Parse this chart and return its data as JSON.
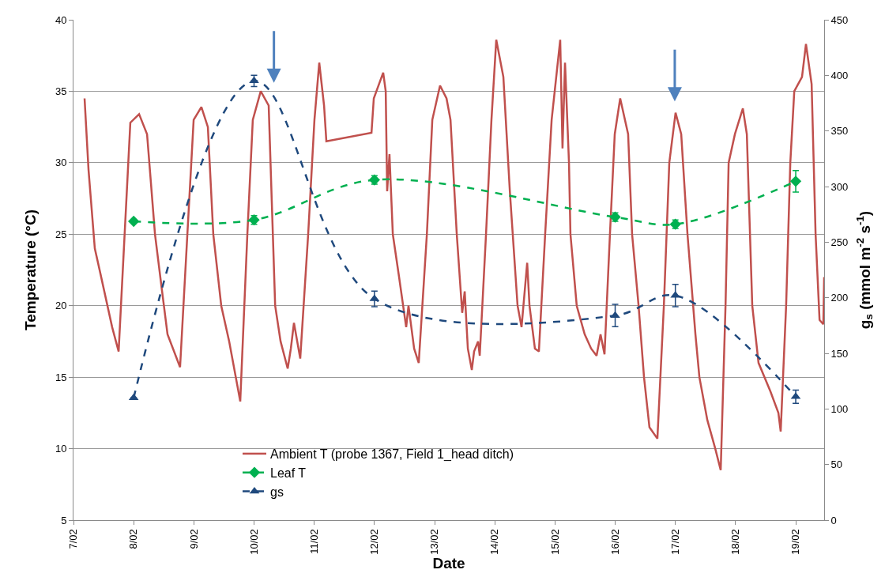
{
  "chart_data": {
    "type": "line",
    "xlabel": "Date",
    "ylabel": "Temperature (°C)",
    "y2label": "g$_{s}$ (mmol m$^{-2}$ s$^{-1}$)",
    "xlim": [
      "--02-07",
      "--02-19T11:20"
    ],
    "xticks": [
      {
        "value": "--02-07",
        "label": "7/02"
      },
      {
        "value": "--02-08",
        "label": "8/02"
      },
      {
        "value": "--02-09",
        "label": "9/02"
      },
      {
        "value": "--02-10",
        "label": "10/02"
      },
      {
        "value": "--02-11",
        "label": "11/02"
      },
      {
        "value": "--02-12",
        "label": "12/02"
      },
      {
        "value": "--02-13",
        "label": "13/02"
      },
      {
        "value": "--02-14",
        "label": "14/02"
      },
      {
        "value": "--02-15",
        "label": "15/02"
      },
      {
        "value": "--02-16",
        "label": "16/02"
      },
      {
        "value": "--02-17",
        "label": "17/02"
      },
      {
        "value": "--02-18",
        "label": "18/02"
      },
      {
        "value": "--02-19",
        "label": "19/02"
      }
    ],
    "ylim": [
      5,
      40
    ],
    "yticks": [
      5,
      10,
      15,
      20,
      25,
      30,
      35,
      40
    ],
    "y2lim": [
      0,
      450
    ],
    "y2ticks": [
      0,
      50,
      100,
      150,
      200,
      250,
      300,
      350,
      400,
      450
    ],
    "grid": "y",
    "legend": "bottom",
    "series": [
      {
        "name": "Ambient T (probe 1367, Field 1_head ditch)",
        "color": "#c0504d",
        "marker": "none",
        "line_style": "solid",
        "x": [
          "--02-07T04:25",
          "--02-07T06:00",
          "--02-07T08:30",
          "--02-07T10:40",
          "--02-07T15:25",
          "--02-07T18:00",
          "--02-07T22:40",
          "--02-08T02:10",
          "--02-08T05:20",
          "--02-08T08:30",
          "--02-08T11:20",
          "--02-08T13:30",
          "--02-08T18:30",
          "--02-08T23:55",
          "--02-09T03:00",
          "--02-09T05:35",
          "--02-09T07:45",
          "--02-09T10:55",
          "--02-09T14:05",
          "--02-09T17:15",
          "--02-09T18:30",
          "--02-09T21:20",
          "--02-09T23:30",
          "--02-10T02:40",
          "--02-10T05:50",
          "--02-10T08:25",
          "--02-10T10:35",
          "--02-10T13:25",
          "--02-10T14:40",
          "--02-10T15:55",
          "--02-10T18:25",
          "--02-10T21:35",
          "--02-11T00:05",
          "--02-11T02:00",
          "--02-11T03:55",
          "--02-11T04:50",
          "--02-11T22:50",
          "--02-11T23:45",
          "--02-12T03:30",
          "--02-12T04:30",
          "--02-12T05:05",
          "--02-12T06:00",
          "--02-12T07:20",
          "--02-12T09:50",
          "--02-12T12:40",
          "--02-12T13:35",
          "--02-12T15:50",
          "--02-12T17:40",
          "--02-12T20:55",
          "--02-12T23:05",
          "--02-13T02:10",
          "--02-13T04:45",
          "--02-13T06:20",
          "--02-13T08:50",
          "--02-13T11:00",
          "--02-13T12:00",
          "--02-13T13:15",
          "--02-13T14:50",
          "--02-13T15:45",
          "--02-13T17:20",
          "--02-13T18:00",
          "--02-13T20:30",
          "--02-13T22:40",
          "--02-14T00:35",
          "--02-14T03:25",
          "--02-14T06:00",
          "--02-14T09:05",
          "--02-14T10:40",
          "--02-14T12:55",
          "--02-14T13:50",
          "--02-14T16:00",
          "--02-14T17:35",
          "--02-14T20:05",
          "--02-14T22:40",
          "--02-15T02:05",
          "--02-15T03:00",
          "--02-15T04:00",
          "--02-15T05:35",
          "--02-15T06:10",
          "--02-15T08:40",
          "--02-15T11:50",
          "--02-15T14:25",
          "--02-15T16:35",
          "--02-15T18:10",
          "--02-15T19:45",
          "--02-15T21:55",
          "--02-15T23:50",
          "--02-16T02:00",
          "--02-16T05:10",
          "--02-16T06:45",
          "--02-16T09:20",
          "--02-16T11:30",
          "--02-16T13:40",
          "--02-16T16:50",
          "--02-16T19:25",
          "--02-16T21:35",
          "--02-17T00:05",
          "--02-17T02:20",
          "--02-17T04:50",
          "--02-17T08:00",
          "--02-17T09:35",
          "--02-17T12:45",
          "--02-17T15:55",
          "--02-17T18:05",
          "--02-17T20:00",
          "--02-17T21:15",
          "--02-17T23:45",
          "--02-18T02:55",
          "--02-18T04:30",
          "--02-18T06:40",
          "--02-18T09:10",
          "--02-18T13:55",
          "--02-18T17:05",
          "--02-18T18:00",
          "--02-18T20:10",
          "--02-18T21:50",
          "--02-18T23:25",
          "--02-19T02:30",
          "--02-19T04:05",
          "--02-19T06:20",
          "--02-19T07:55",
          "--02-19T09:30",
          "--02-19T11:00",
          "--02-19T11:20"
        ],
        "values": [
          34.5,
          29.5,
          24,
          22.3,
          18.5,
          16.8,
          32.8,
          33.4,
          32,
          25,
          21,
          18,
          15.7,
          33,
          33.9,
          32.5,
          25,
          20,
          17.5,
          14.5,
          13.3,
          25,
          33,
          35,
          34,
          20,
          17.5,
          15.6,
          17,
          18.8,
          16.3,
          25,
          33,
          37,
          34,
          31.5,
          32.1,
          34.5,
          36.3,
          35,
          28,
          30.6,
          25,
          22,
          18.5,
          20,
          17,
          16,
          25,
          33,
          35.4,
          34.5,
          33,
          25,
          19.5,
          21,
          17,
          15.5,
          16.8,
          17.5,
          16.5,
          25,
          33,
          38.6,
          36,
          28,
          20,
          18.5,
          23,
          20,
          17,
          16.8,
          25,
          33,
          38.6,
          31,
          37,
          30,
          25,
          20,
          18,
          17,
          16.5,
          18,
          16.6,
          25,
          32,
          34.5,
          32,
          25,
          20,
          15,
          11.5,
          10.7,
          20,
          30,
          33.5,
          32,
          25,
          18,
          15,
          12,
          10,
          8.5,
          20,
          30,
          32,
          33.8,
          32,
          20,
          16,
          14,
          12.5,
          11.2,
          20,
          30,
          35,
          36,
          38.3,
          35.5,
          25,
          19,
          18.7,
          22
        ]
      },
      {
        "name": "Leaf T",
        "color": "#00b050",
        "marker": "diamond",
        "line_style": "dashed",
        "x": [
          "--02-08",
          "--02-10",
          "--02-12",
          "--02-16",
          "--02-17",
          "--02-19"
        ],
        "values": [
          25.9,
          26.0,
          28.8,
          26.2,
          25.7,
          28.7
        ],
        "errors": [
          null,
          0.3,
          0.3,
          0.3,
          0.3,
          0.75
        ]
      },
      {
        "name": "gs",
        "color": "#1f497d",
        "marker": "triangle",
        "line_style": "dashed",
        "axis": "y2",
        "x": [
          "--02-08",
          "--02-10",
          "--02-12",
          "--02-16",
          "--02-17",
          "--02-19"
        ],
        "values": [
          110,
          395,
          199,
          184,
          202,
          111
        ],
        "errors": [
          null,
          5,
          7,
          10,
          10,
          6
        ]
      }
    ]
  }
}
